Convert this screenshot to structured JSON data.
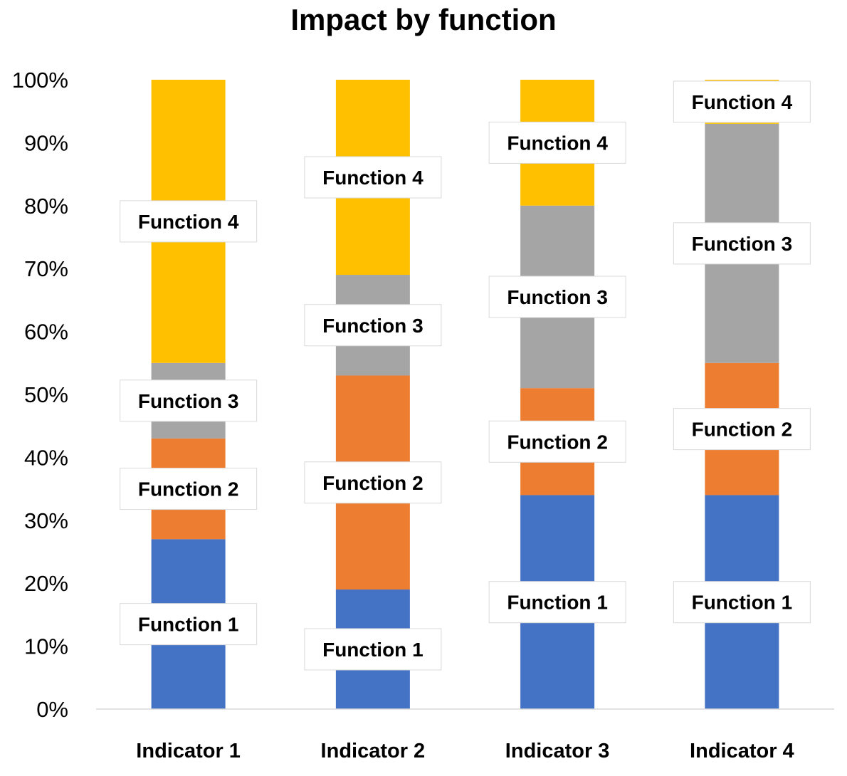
{
  "chart_data": {
    "type": "bar",
    "stacked": true,
    "title": "Impact by function",
    "categories": [
      "Indicator 1",
      "Indicator 2",
      "Indicator 3",
      "Indicator 4"
    ],
    "ylim": [
      0,
      100
    ],
    "yticks": [
      "0%",
      "10%",
      "20%",
      "30%",
      "40%",
      "50%",
      "60%",
      "70%",
      "80%",
      "90%",
      "100%"
    ],
    "series": [
      {
        "name": "Function 1",
        "values": [
          27,
          19,
          34,
          34
        ],
        "color": "#4472C4"
      },
      {
        "name": "Function 2",
        "values": [
          16,
          34,
          17,
          21
        ],
        "color": "#ED7D31"
      },
      {
        "name": "Function 3",
        "values": [
          12,
          16,
          29,
          38
        ],
        "color": "#A5A5A5"
      },
      {
        "name": "Function 4",
        "values": [
          45,
          31,
          20,
          7
        ],
        "color": "#FFC000"
      }
    ],
    "grid": false,
    "legend": "none"
  }
}
